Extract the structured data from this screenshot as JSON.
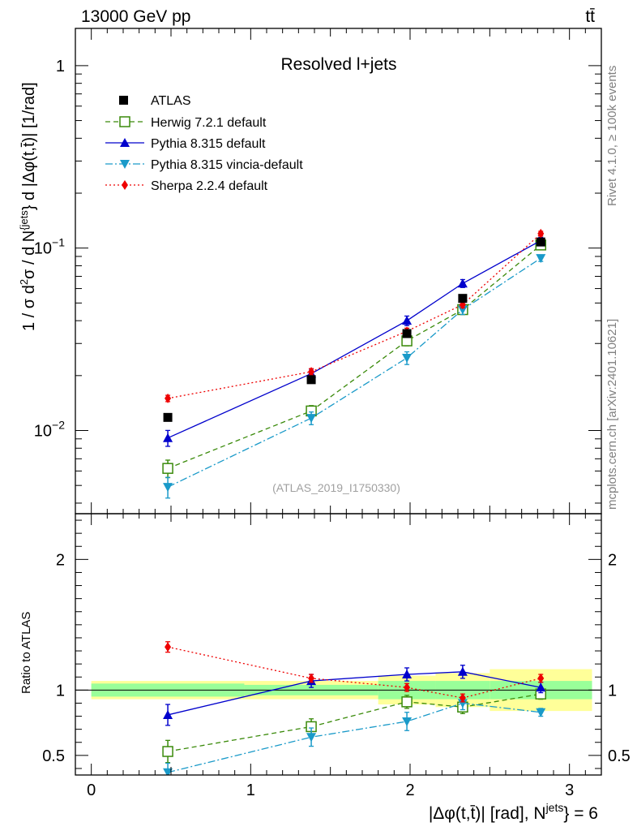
{
  "header": {
    "energy_label": "13000 GeV pp",
    "process_label": "tt̄"
  },
  "side_labels": {
    "rivet": "Rivet 4.1.0, ≥ 100k events",
    "mcplots": "mcplots.cern.ch [arXiv:2401.10621]"
  },
  "chart_data": {
    "type": "line",
    "title": "Resolved l+jets",
    "analysis_id": "(ATLAS_2019_I1750330)",
    "xlabel": "|Δφ(t,t̄)| [rad], N^{jets} = 6",
    "xlabel_main": "|Δφ(t,t̄)| [rad], N",
    "xlabel_sup": "jets",
    "xlabel_tail": "} = 6",
    "ylabel": "1 / σ d²σ / d N^{jets} d |Δφ(t,t̄)| [1/rad]",
    "ylabel_parts": [
      "1 / σ d",
      "2",
      "σ / d N",
      "{jets",
      "} d |Δφ(t,t̄)| [1/rad]"
    ],
    "ratio_ylabel": "Ratio to ATLAS",
    "xlim": [
      -0.1,
      3.2
    ],
    "ylim_main": [
      0.0035,
      1.6
    ],
    "ylim_ratio": [
      0.35,
      2.35
    ],
    "x_ticks": [
      {
        "v": 0,
        "label": "0"
      },
      {
        "v": 1,
        "label": "1"
      },
      {
        "v": 2,
        "label": "2"
      },
      {
        "v": 3,
        "label": "3"
      }
    ],
    "y_ticks_main": [
      {
        "v": 1,
        "base": "1",
        "exp": ""
      },
      {
        "v": 0.1,
        "base": "10",
        "exp": "−1"
      },
      {
        "v": 0.01,
        "base": "10",
        "exp": "−2"
      }
    ],
    "y_ticks_ratio": [
      {
        "v": 0.5,
        "label": "0.5"
      },
      {
        "v": 1,
        "label": "1"
      },
      {
        "v": 2,
        "label": "2"
      }
    ],
    "data_series": {
      "name": "ATLAS",
      "bins": [
        [
          0,
          0.96
        ],
        [
          0.96,
          1.8
        ],
        [
          1.8,
          2.16
        ],
        [
          2.16,
          2.5
        ],
        [
          2.5,
          3.1416
        ]
      ],
      "x": [
        0.48,
        1.38,
        1.98,
        2.33,
        2.82
      ],
      "y": [
        0.0118,
        0.019,
        0.034,
        0.053,
        0.108
      ],
      "band_inner": [
        0.05,
        0.04,
        0.07,
        0.07,
        0.07
      ],
      "band_outer": [
        0.07,
        0.07,
        0.11,
        0.13,
        0.16
      ]
    },
    "series": [
      {
        "name": "Herwig 7.2.1 default",
        "color": "#3a8a0a",
        "dash": "6,4",
        "marker": "open-square",
        "x": [
          0.48,
          1.38,
          1.98,
          2.33,
          2.82
        ],
        "y": [
          0.0062,
          0.0128,
          0.031,
          0.046,
          0.104
        ],
        "err": [
          0.11,
          0.07,
          0.06,
          0.06,
          0.04
        ],
        "ratio": [
          0.53,
          0.72,
          0.91,
          0.87,
          0.97
        ],
        "ratio_err": [
          0.085,
          0.06,
          0.05,
          0.05,
          0.04
        ]
      },
      {
        "name": "Pythia 8.315 default",
        "color": "#0000cc",
        "dash": "",
        "marker": "triangle-up",
        "x": [
          0.48,
          1.38,
          1.98,
          2.33,
          2.82
        ],
        "y": [
          0.0091,
          0.0205,
          0.04,
          0.064,
          0.11
        ],
        "err": [
          0.1,
          0.06,
          0.06,
          0.05,
          0.04
        ],
        "ratio": [
          0.81,
          1.07,
          1.12,
          1.14,
          1.02
        ],
        "ratio_err": [
          0.08,
          0.05,
          0.05,
          0.05,
          0.04
        ]
      },
      {
        "name": "Pythia 8.315 vincia-default",
        "color": "#1a9ac9",
        "dash": "9,3,2,3",
        "marker": "triangle-down",
        "x": [
          0.48,
          1.38,
          1.98,
          2.33,
          2.82
        ],
        "y": [
          0.0049,
          0.0117,
          0.025,
          0.046,
          0.088
        ],
        "err": [
          0.13,
          0.08,
          0.08,
          0.06,
          0.04
        ],
        "ratio": [
          0.37,
          0.64,
          0.76,
          0.9,
          0.83
        ],
        "ratio_err": [
          0.07,
          0.07,
          0.07,
          0.05,
          0.03
        ]
      },
      {
        "name": "Sherpa 2.2.4 default",
        "color": "#ee0000",
        "dash": "2,3",
        "marker": "diamond",
        "x": [
          0.48,
          1.38,
          1.98,
          2.33,
          2.82
        ],
        "y": [
          0.015,
          0.021,
          0.035,
          0.049,
          0.12
        ],
        "err": [
          0.04,
          0.04,
          0.04,
          0.04,
          0.03
        ],
        "ratio": [
          1.33,
          1.09,
          1.02,
          0.94,
          1.09
        ],
        "ratio_err": [
          0.04,
          0.03,
          0.03,
          0.03,
          0.03
        ]
      }
    ]
  }
}
